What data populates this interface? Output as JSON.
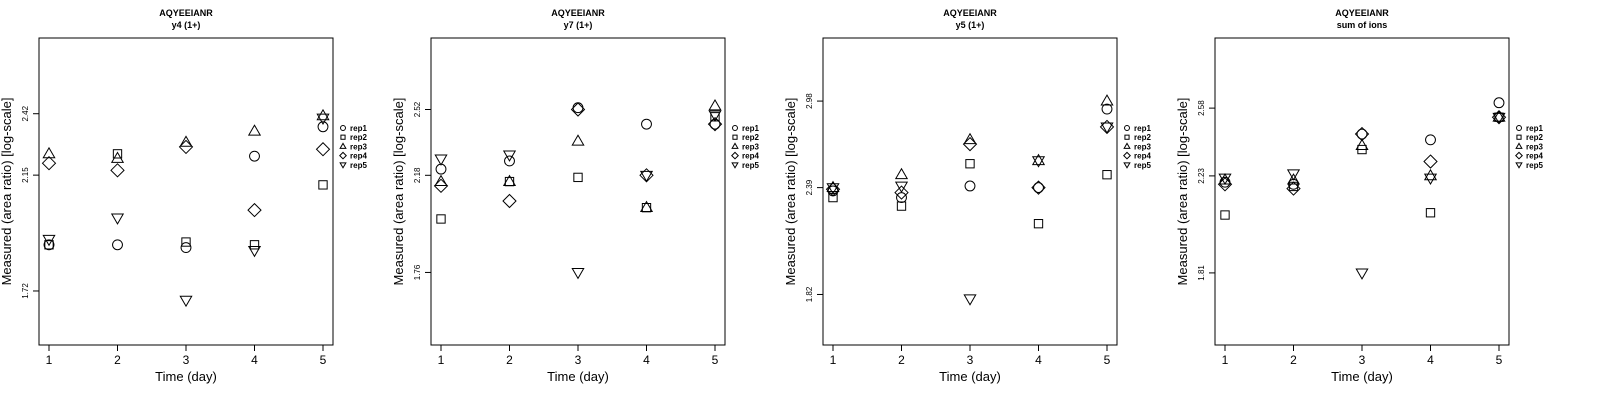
{
  "chart_data": [
    {
      "type": "scatter",
      "title": "AQYEEIANR",
      "subtitle": "y4 (1+)",
      "xlabel": "Time (day)",
      "ylabel": "Measured (area ratio) [log-scale]",
      "x_ticks": [
        1,
        2,
        3,
        4,
        5
      ],
      "y_ticks": [
        "1.72",
        "2.15",
        "2.42"
      ],
      "y_ticks_values": [
        1.72,
        2.15,
        2.42
      ],
      "ylim": [
        1.55,
        2.8
      ],
      "log_scale": true,
      "legend_position": "right",
      "grid": false,
      "series": [
        {
          "name": "rep1",
          "shape": "circle",
          "x": [
            1,
            2,
            3,
            4,
            5
          ],
          "y": [
            1.88,
            1.88,
            1.87,
            2.23,
            2.36
          ]
        },
        {
          "name": "rep2",
          "shape": "square",
          "x": [
            1,
            2,
            3,
            4,
            5
          ],
          "y": [
            1.88,
            2.24,
            1.89,
            1.88,
            2.11
          ]
        },
        {
          "name": "rep3",
          "shape": "triangle",
          "x": [
            1,
            2,
            3,
            4,
            5
          ],
          "y": [
            2.24,
            2.22,
            2.29,
            2.34,
            2.41
          ]
        },
        {
          "name": "rep4",
          "shape": "diamond",
          "x": [
            1,
            2,
            3,
            4,
            5
          ],
          "y": [
            2.2,
            2.17,
            2.27,
            2.01,
            2.26
          ]
        },
        {
          "name": "rep5",
          "shape": "invtri",
          "x": [
            1,
            2,
            3,
            4,
            5
          ],
          "y": [
            1.9,
            1.98,
            1.69,
            1.86,
            2.4
          ]
        }
      ]
    },
    {
      "type": "scatter",
      "title": "AQYEEIANR",
      "subtitle": "y7 (1+)",
      "xlabel": "Time (day)",
      "ylabel": "Measured (area ratio) [log-scale]",
      "x_ticks": [
        1,
        2,
        3,
        4,
        5
      ],
      "y_ticks": [
        "1.76",
        "2.18",
        "2.52"
      ],
      "y_ticks_values": [
        1.76,
        2.18,
        2.52
      ],
      "ylim": [
        1.5,
        2.95
      ],
      "log_scale": true,
      "legend_position": "right",
      "grid": false,
      "series": [
        {
          "name": "rep1",
          "shape": "circle",
          "x": [
            1,
            2,
            3,
            4,
            5
          ],
          "y": [
            2.21,
            2.25,
            2.53,
            2.44,
            2.44
          ]
        },
        {
          "name": "rep2",
          "shape": "square",
          "x": [
            1,
            2,
            3,
            4,
            5
          ],
          "y": [
            1.98,
            2.15,
            2.17,
            2.03,
            2.48
          ]
        },
        {
          "name": "rep3",
          "shape": "triangle",
          "x": [
            1,
            2,
            3,
            4,
            5
          ],
          "y": [
            2.15,
            2.15,
            2.35,
            2.03,
            2.54
          ]
        },
        {
          "name": "rep4",
          "shape": "diamond",
          "x": [
            1,
            2,
            3,
            4,
            5
          ],
          "y": [
            2.13,
            2.06,
            2.52,
            2.18,
            2.44
          ]
        },
        {
          "name": "rep5",
          "shape": "invtri",
          "x": [
            1,
            2,
            3,
            4,
            5
          ],
          "y": [
            2.26,
            2.28,
            1.76,
            2.18,
            2.49
          ]
        }
      ]
    },
    {
      "type": "scatter",
      "title": "AQYEEIANR",
      "subtitle": "y5 (1+)",
      "xlabel": "Time (day)",
      "ylabel": "Measured (area ratio) [log-scale]",
      "x_ticks": [
        1,
        2,
        3,
        4,
        5
      ],
      "y_ticks": [
        "1.82",
        "2.39",
        "2.98"
      ],
      "y_ticks_values": [
        1.82,
        2.39,
        2.98
      ],
      "ylim": [
        1.6,
        3.5
      ],
      "log_scale": true,
      "legend_position": "right",
      "grid": false,
      "series": [
        {
          "name": "rep1",
          "shape": "circle",
          "x": [
            1,
            2,
            3,
            4,
            5
          ],
          "y": [
            2.37,
            2.33,
            2.4,
            2.39,
            2.92
          ]
        },
        {
          "name": "rep2",
          "shape": "square",
          "x": [
            1,
            2,
            3,
            4,
            5
          ],
          "y": [
            2.33,
            2.28,
            2.54,
            2.18,
            2.47
          ]
        },
        {
          "name": "rep3",
          "shape": "triangle",
          "x": [
            1,
            2,
            3,
            4,
            5
          ],
          "y": [
            2.39,
            2.47,
            2.7,
            2.56,
            2.98
          ]
        },
        {
          "name": "rep4",
          "shape": "diamond",
          "x": [
            1,
            2,
            3,
            4,
            5
          ],
          "y": [
            2.38,
            2.36,
            2.67,
            2.39,
            2.79
          ]
        },
        {
          "name": "rep5",
          "shape": "invtri",
          "x": [
            1,
            2,
            3,
            4,
            5
          ],
          "y": [
            2.39,
            2.4,
            1.8,
            2.56,
            2.79
          ]
        }
      ]
    },
    {
      "type": "scatter",
      "title": "AQYEEIANR",
      "subtitle": "sum of ions",
      "xlabel": "Time (day)",
      "ylabel": "Measured (area ratio) [log-scale]",
      "x_ticks": [
        1,
        2,
        3,
        4,
        5
      ],
      "y_ticks": [
        "1.81",
        "2.23",
        "2.58"
      ],
      "y_ticks_values": [
        1.81,
        2.23,
        2.58
      ],
      "ylim": [
        1.55,
        3.0
      ],
      "log_scale": true,
      "legend_position": "right",
      "grid": false,
      "series": [
        {
          "name": "rep1",
          "shape": "circle",
          "x": [
            1,
            2,
            3,
            4,
            5
          ],
          "y": [
            2.2,
            2.19,
            2.44,
            2.41,
            2.61
          ]
        },
        {
          "name": "rep2",
          "shape": "square",
          "x": [
            1,
            2,
            3,
            4,
            5
          ],
          "y": [
            2.05,
            2.18,
            2.36,
            2.06,
            2.53
          ]
        },
        {
          "name": "rep3",
          "shape": "triangle",
          "x": [
            1,
            2,
            3,
            4,
            5
          ],
          "y": [
            2.21,
            2.21,
            2.38,
            2.23,
            2.53
          ]
        },
        {
          "name": "rep4",
          "shape": "diamond",
          "x": [
            1,
            2,
            3,
            4,
            5
          ],
          "y": [
            2.19,
            2.17,
            2.44,
            2.3,
            2.53
          ]
        },
        {
          "name": "rep5",
          "shape": "invtri",
          "x": [
            1,
            2,
            3,
            4,
            5
          ],
          "y": [
            2.22,
            2.24,
            1.81,
            2.22,
            2.53
          ]
        }
      ]
    }
  ]
}
